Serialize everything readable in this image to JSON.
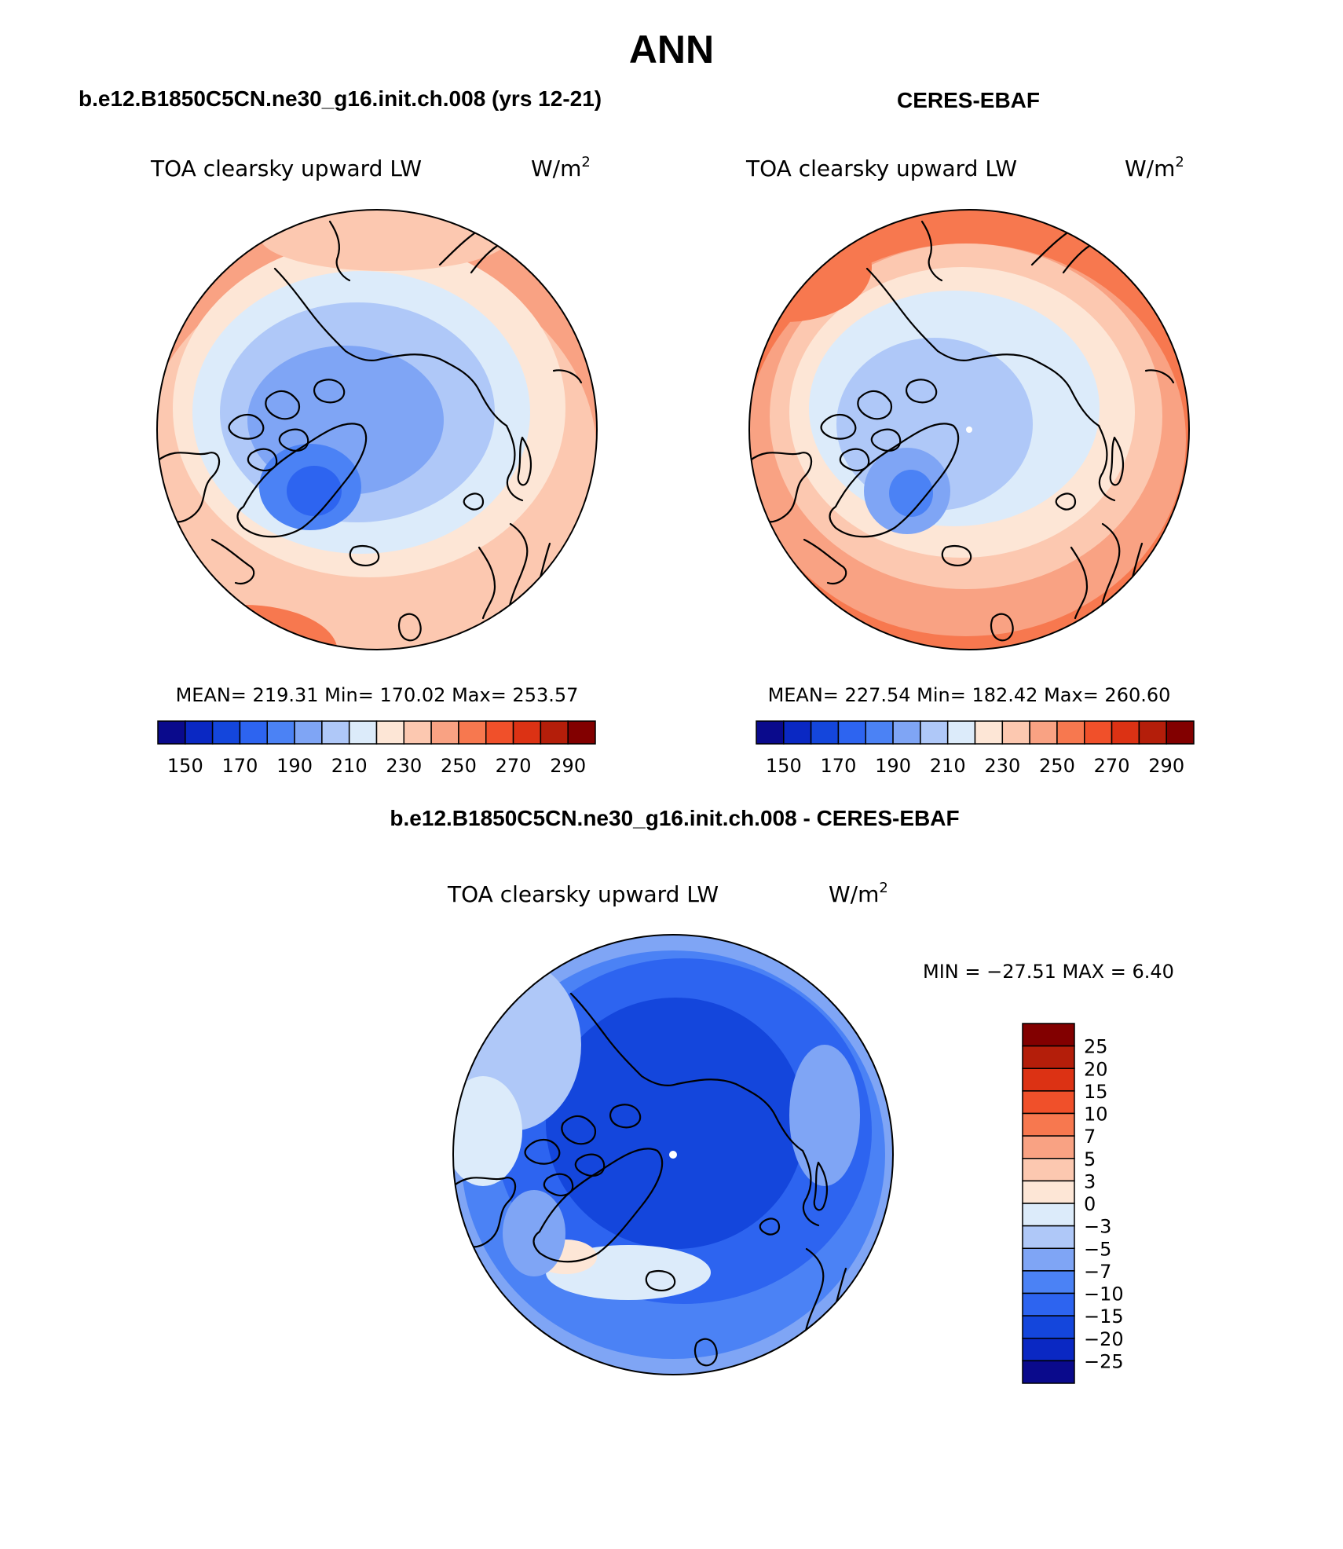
{
  "page_title": "ANN",
  "units": "W/m",
  "units_superscript": "2",
  "colors": {
    "model_obs_scale": [
      "#0a0a8c",
      "#0a28c3",
      "#1446dc",
      "#2d64f0",
      "#4b82f5",
      "#7fa5f5",
      "#afc8f8",
      "#dcebfa",
      "#fde6d6",
      "#fcc8b0",
      "#f9a283",
      "#f7784f",
      "#f0502a",
      "#dc3214",
      "#b41e0a",
      "#820000"
    ],
    "diff_scale": [
      "#0a0a8c",
      "#0a28c3",
      "#1446dc",
      "#2d64f0",
      "#4b82f5",
      "#7fa5f5",
      "#afc8f8",
      "#dcebfa",
      "#fde6d6",
      "#fcc8b0",
      "#f9a283",
      "#f7784f",
      "#f0502a",
      "#dc3214",
      "#b41e0a",
      "#820000"
    ]
  },
  "panels": {
    "model": {
      "case_title": "b.e12.B1850C5CN.ne30_g16.init.ch.008 (yrs 12-21)",
      "variable": "TOA clearsky upward LW",
      "stats": "MEAN= 219.31   Min= 170.02   Max= 253.57"
    },
    "obs": {
      "case_title": "CERES-EBAF",
      "variable": "TOA clearsky upward LW",
      "stats": "MEAN= 227.54   Min= 182.42   Max= 260.60"
    },
    "diff": {
      "case_title": "b.e12.B1850C5CN.ne30_g16.init.ch.008 - CERES-EBAF",
      "variable": "TOA clearsky upward LW",
      "stats": "MIN = −27.51  MAX =    6.40"
    }
  },
  "chart_data": [
    {
      "type": "heatmap",
      "projection": "north polar stereographic",
      "title": "TOA clearsky upward LW",
      "units": "W/m2",
      "mean": 219.31,
      "min": 170.02,
      "max": 253.57,
      "colorbar_levels": [
        140,
        150,
        160,
        170,
        180,
        190,
        200,
        210,
        220,
        230,
        240,
        250,
        260,
        270,
        280,
        290,
        300
      ],
      "colorbar_tick_labels": [
        "150",
        "170",
        "190",
        "210",
        "230",
        "250",
        "270",
        "290"
      ],
      "field": {
        "pole": 185,
        "greenland": 172,
        "arctic_ocean": 190,
        "north_atlantic": 245,
        "north_pacific": 235,
        "siberia": 215,
        "canada": 210
      }
    },
    {
      "type": "heatmap",
      "projection": "north polar stereographic",
      "title": "TOA clearsky upward LW",
      "units": "W/m2",
      "mean": 227.54,
      "min": 182.42,
      "max": 260.6,
      "colorbar_levels": [
        140,
        150,
        160,
        170,
        180,
        190,
        200,
        210,
        220,
        230,
        240,
        250,
        260,
        270,
        280,
        290,
        300
      ],
      "colorbar_tick_labels": [
        "150",
        "170",
        "190",
        "210",
        "230",
        "250",
        "270",
        "290"
      ],
      "field": {
        "pole": 200,
        "greenland": 185,
        "arctic_ocean": 205,
        "north_atlantic": 255,
        "north_pacific": 245,
        "siberia": 228,
        "canada": 220
      }
    },
    {
      "type": "heatmap",
      "projection": "north polar stereographic",
      "title": "TOA clearsky upward LW",
      "units": "W/m2",
      "min": -27.51,
      "max": 6.4,
      "colorbar_levels": [
        -30,
        -25,
        -20,
        -15,
        -10,
        -7,
        -5,
        -3,
        0,
        3,
        5,
        7,
        10,
        15,
        20,
        25,
        30
      ],
      "colorbar_tick_labels": [
        "−25",
        "−20",
        "−15",
        "−10",
        "−7",
        "−5",
        "−3",
        "0",
        "3",
        "5",
        "7",
        "10",
        "15",
        "20",
        "25"
      ],
      "field": {
        "pole": -13,
        "greenland": -4,
        "arctic_ocean": -12,
        "north_atlantic": -9,
        "north_pacific": -8,
        "siberia": -10,
        "canada": -9
      }
    }
  ]
}
